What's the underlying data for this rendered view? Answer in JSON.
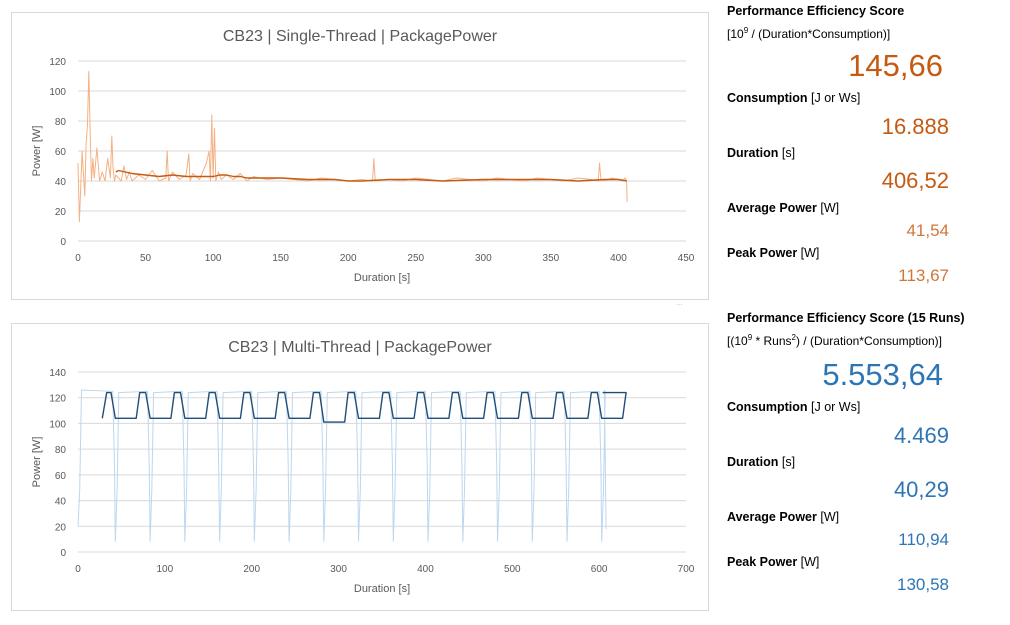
{
  "chart_data": [
    {
      "type": "line",
      "title": "CB23 | Single-Thread | PackagePower",
      "xlabel": "Duration [s]",
      "ylabel": "Power [W]",
      "xlim": [
        0,
        450
      ],
      "ylim": [
        0,
        120
      ],
      "xticks": [
        "0",
        "50",
        "100",
        "150",
        "200",
        "250",
        "300",
        "350",
        "400",
        "450"
      ],
      "yticks": [
        "0",
        "20",
        "40",
        "60",
        "80",
        "100",
        "120"
      ],
      "grid": true,
      "series": [
        {
          "color": "#f4b183",
          "style": "raw",
          "x": [
            0,
            1,
            3,
            4,
            5,
            6,
            7,
            8,
            9,
            10,
            11,
            12,
            14,
            16,
            18,
            20,
            22,
            24,
            25,
            26,
            27,
            28,
            30,
            32,
            34,
            36,
            38,
            40,
            45,
            50,
            55,
            60,
            65,
            66,
            67,
            70,
            75,
            80,
            82,
            83,
            85,
            90,
            95,
            97,
            98,
            99,
            100,
            101,
            102,
            104,
            106,
            110,
            115,
            120,
            125,
            130,
            140,
            150,
            160,
            170,
            180,
            190,
            200,
            210,
            218,
            219,
            220,
            230,
            240,
            250,
            260,
            270,
            280,
            290,
            300,
            310,
            320,
            330,
            340,
            350,
            360,
            370,
            380,
            385,
            386,
            387,
            390,
            395,
            400,
            403,
            405,
            406,
            406.5
          ],
          "y": [
            52,
            13,
            60,
            45,
            30,
            65,
            78,
            113,
            72,
            40,
            55,
            42,
            62,
            40,
            46,
            40,
            55,
            42,
            70,
            48,
            40,
            44,
            42,
            40,
            50,
            41,
            46,
            40,
            44,
            41,
            47,
            40,
            42,
            60,
            40,
            46,
            41,
            44,
            58,
            40,
            45,
            41,
            52,
            60,
            40,
            84,
            42,
            75,
            40,
            46,
            41,
            44,
            41,
            45,
            40,
            43,
            41,
            42,
            41,
            40,
            42,
            41,
            40,
            41,
            40,
            55,
            40,
            41,
            40,
            42,
            41,
            40,
            42,
            41,
            40,
            42,
            41,
            40,
            42,
            41,
            40,
            42,
            41,
            40,
            52,
            41,
            40,
            42,
            41,
            40,
            42,
            40,
            26
          ]
        },
        {
          "color": "#c55a11",
          "style": "smooth",
          "x": [
            28,
            30,
            35,
            40,
            50,
            60,
            70,
            80,
            90,
            100,
            105,
            110,
            115,
            120,
            125,
            130,
            150,
            170,
            190,
            200,
            210,
            230,
            250,
            270,
            300,
            330,
            350,
            370,
            390,
            400,
            406
          ],
          "y": [
            46,
            47,
            46,
            45,
            44,
            43,
            44,
            43,
            43,
            43,
            44,
            44,
            43,
            43,
            42,
            42,
            42,
            41,
            41,
            40,
            40,
            41,
            41,
            40,
            41,
            41,
            41,
            40,
            41,
            41,
            40
          ]
        }
      ]
    },
    {
      "type": "line",
      "title": "CB23 | Multi-Thread | PackagePower",
      "xlabel": "Duration [s]",
      "ylabel": "Power [W]",
      "xlim": [
        0,
        700
      ],
      "ylim": [
        0,
        140
      ],
      "xticks": [
        "0",
        "100",
        "200",
        "300",
        "400",
        "500",
        "600",
        "700"
      ],
      "yticks": [
        "0",
        "20",
        "40",
        "60",
        "80",
        "100",
        "120",
        "140"
      ],
      "grid": true,
      "runs": 15,
      "run_period_s": 40,
      "first_run_end_s": 42,
      "series": [
        {
          "color": "#bdd7ee",
          "style": "raw",
          "peak_w": 126,
          "trough_w": 8,
          "mid_w": 48
        },
        {
          "color": "#1f4e79",
          "style": "smooth",
          "x_start": 28,
          "x_end": 604,
          "high_w": 124,
          "low_w": 104,
          "dip_w": 101
        }
      ]
    }
  ],
  "stats": [
    {
      "score_label": "Performance Efficiency Score",
      "score_formula_a": "[10",
      "score_formula_sup": "9",
      "score_formula_b": " / (Duration*Consumption)]",
      "score_value": "145,66",
      "consumption_label_a": "Consumption ",
      "consumption_label_b": "[J or Ws]",
      "consumption_value": "16.888",
      "duration_label_a": "Duration ",
      "duration_label_b": "[s]",
      "duration_value": "406,52",
      "avg_label_a": "Average Power ",
      "avg_label_b": "[W]",
      "avg_value": "41,54",
      "peak_label_a": "Peak Power ",
      "peak_label_b": "[W]",
      "peak_value": "113,67",
      "accent": "#c55a11"
    },
    {
      "score_label": "Performance Efficiency Score (15 Runs)",
      "score_formula_a": "[(10",
      "score_formula_sup": "9",
      "score_formula_b": " * Runs",
      "score_formula_sup2": "2",
      "score_formula_c": ") / (Duration*Consumption)]",
      "score_value": "5.553,64",
      "consumption_label_a": "Consumption ",
      "consumption_label_b": "[J or Ws]",
      "consumption_value": "4.469",
      "duration_label_a": "Duration ",
      "duration_label_b": "[s]",
      "duration_value": "40,29",
      "avg_label_a": "Average Power ",
      "avg_label_b": "[W]",
      "avg_value": "110,94",
      "peak_label_a": "Peak Power ",
      "peak_label_b": "[W]",
      "peak_value": "130,58",
      "accent": "#2e75b6"
    }
  ]
}
